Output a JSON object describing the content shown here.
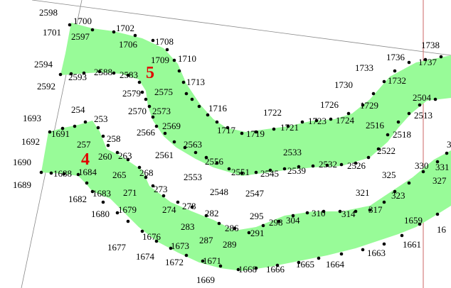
{
  "colors": {
    "fill": "#98fb98",
    "line": "#888888",
    "red_line": "#cc6666",
    "point": "#000000",
    "label": "#000000",
    "zone": "#e00000"
  },
  "zones": [
    "5",
    "4"
  ],
  "labels": [
    "2598",
    "1700",
    "1701",
    "2597",
    "1702",
    "1706",
    "1708",
    "1709",
    "1710",
    "2594",
    "2592",
    "2593",
    "2588",
    "2583",
    "1713",
    "2579",
    "2575",
    "2570",
    "2573",
    "1716",
    "1738",
    "1736",
    "1737",
    "1733",
    "1730",
    "1732",
    "1726",
    "1729",
    "2504",
    "1722",
    "1723",
    "1724",
    "1721",
    "1719",
    "1717",
    "2569",
    "2566",
    "2563",
    "2516",
    "2513",
    "2518",
    "2522",
    "2533",
    "254",
    "253",
    "1693",
    "1691",
    "1692",
    "258",
    "257",
    "260",
    "263",
    "1690",
    "1689",
    "1688",
    "1684",
    "265",
    "268",
    "2561",
    "2556",
    "2551",
    "2545",
    "2539",
    "2532",
    "2526",
    "2553",
    "273",
    "2548",
    "2547",
    "1683",
    "271",
    "1682",
    "1680",
    "1679",
    "278",
    "274",
    "282",
    "325",
    "330",
    "331",
    "335",
    "327",
    "323",
    "321",
    "317",
    "314",
    "310",
    "304",
    "298",
    "295",
    "291",
    "286",
    "283",
    "287",
    "289",
    "1659",
    "16",
    "1676",
    "1673",
    "1677",
    "1674",
    "1672",
    "1671",
    "1668",
    "1666",
    "1665",
    "1664",
    "1663",
    "1661",
    "1669"
  ]
}
